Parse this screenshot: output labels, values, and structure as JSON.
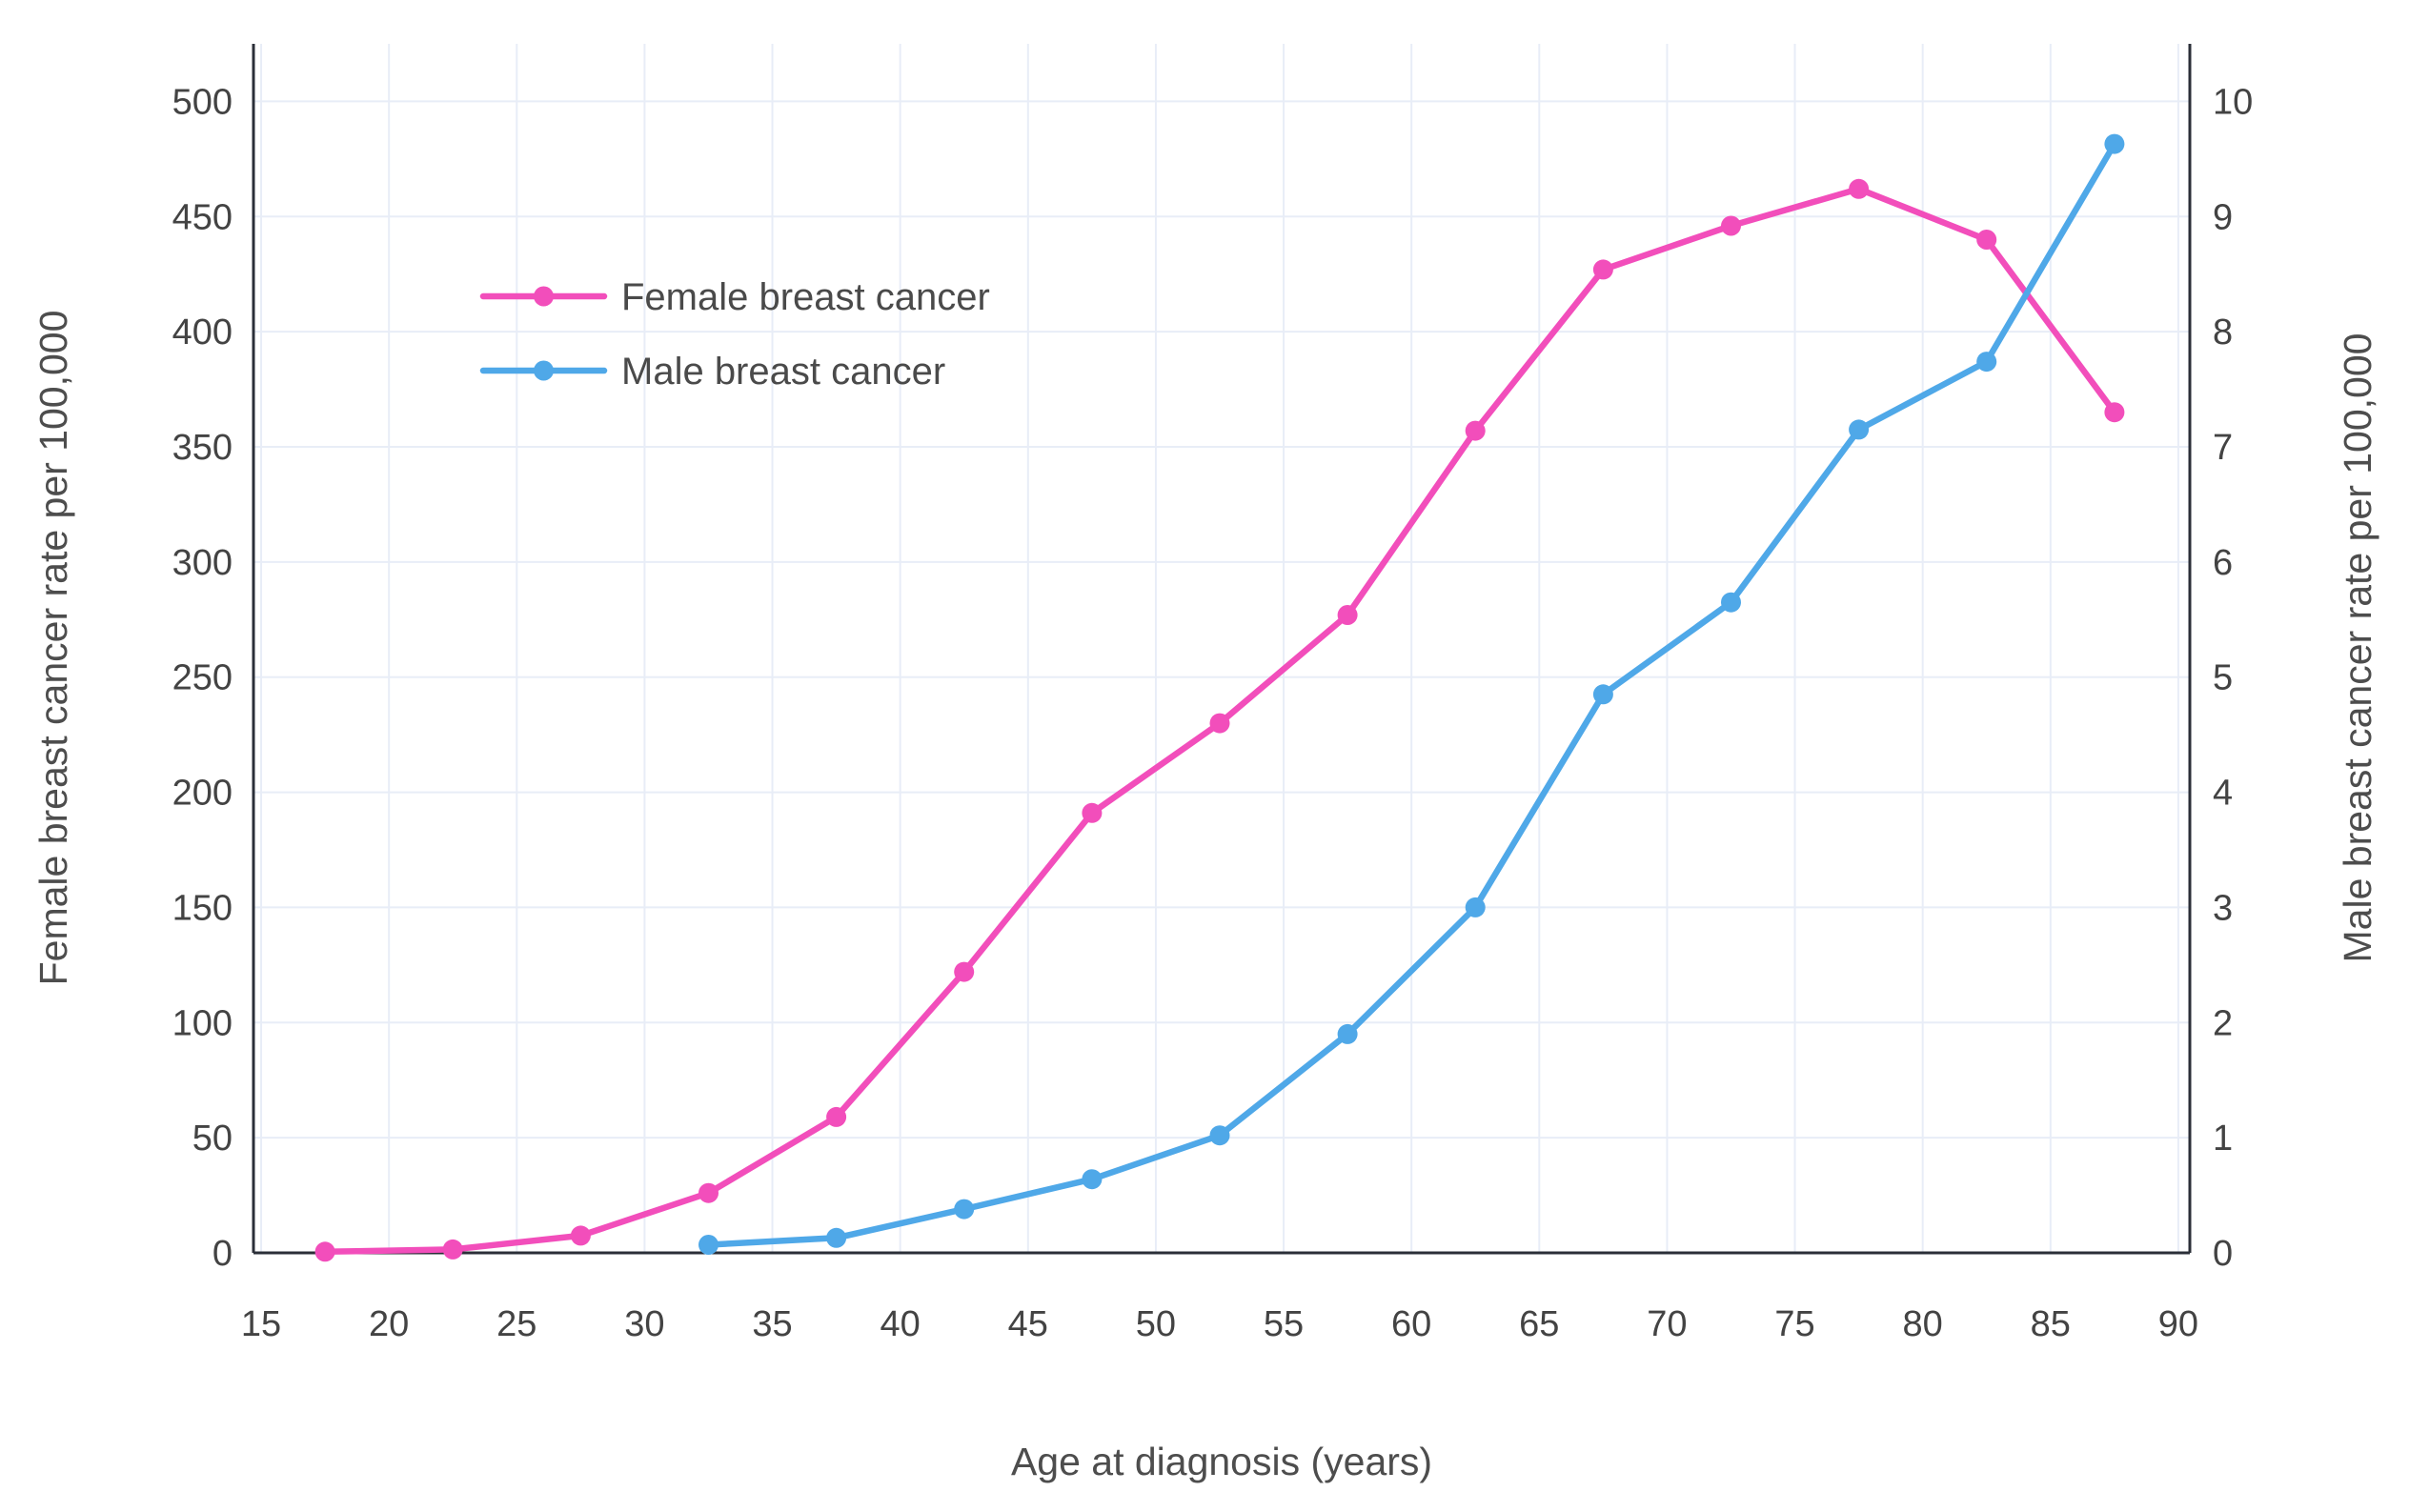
{
  "chart_data": {
    "type": "line",
    "title": "",
    "xlabel": "Age at diagnosis (years)",
    "ylabel_left": "Female breast cancer rate per 100,000",
    "ylabel_right": "Male breast cancer rate per 100,000",
    "xlim": [
      14.7,
      90.45
    ],
    "ylim_left": [
      0,
      525
    ],
    "ylim_right": [
      0,
      10.5
    ],
    "x_ticks": [
      15,
      20,
      25,
      30,
      35,
      40,
      45,
      50,
      55,
      60,
      65,
      70,
      75,
      80,
      85,
      90
    ],
    "left_ticks": [
      0,
      50,
      100,
      150,
      200,
      250,
      300,
      350,
      400,
      450,
      500
    ],
    "right_ticks": [
      0,
      1,
      2,
      3,
      4,
      5,
      6,
      7,
      8,
      9,
      10
    ],
    "grid": true,
    "legend_position": "upper-left-inside",
    "series": [
      {
        "name": "Female breast cancer",
        "axis": "left",
        "color": "#F24EBB",
        "x": [
          17.5,
          22.5,
          27.5,
          32.5,
          37.5,
          42.5,
          47.5,
          52.5,
          57.5,
          62.5,
          67.5,
          72.5,
          77.5,
          82.5,
          87.5
        ],
        "values": [
          0.5,
          1.5,
          7.5,
          26,
          59,
          122,
          191,
          230,
          277,
          357,
          427,
          446,
          462,
          440,
          365
        ]
      },
      {
        "name": "Male breast cancer",
        "axis": "right",
        "color": "#4FA8E8",
        "x": [
          32.5,
          37.5,
          42.5,
          47.5,
          52.5,
          57.5,
          62.5,
          67.5,
          72.5,
          77.5,
          82.5,
          87.5
        ],
        "values": [
          0.07,
          0.13,
          0.38,
          0.64,
          1.02,
          1.9,
          3.0,
          4.85,
          5.65,
          7.15,
          7.74,
          9.63
        ]
      }
    ],
    "colors": {
      "grid": "#E8EDF7",
      "axis": "#2B2F38",
      "tick_text": "#434343",
      "title_text": "#4D4D4D",
      "background": "#FFFFFF"
    }
  }
}
